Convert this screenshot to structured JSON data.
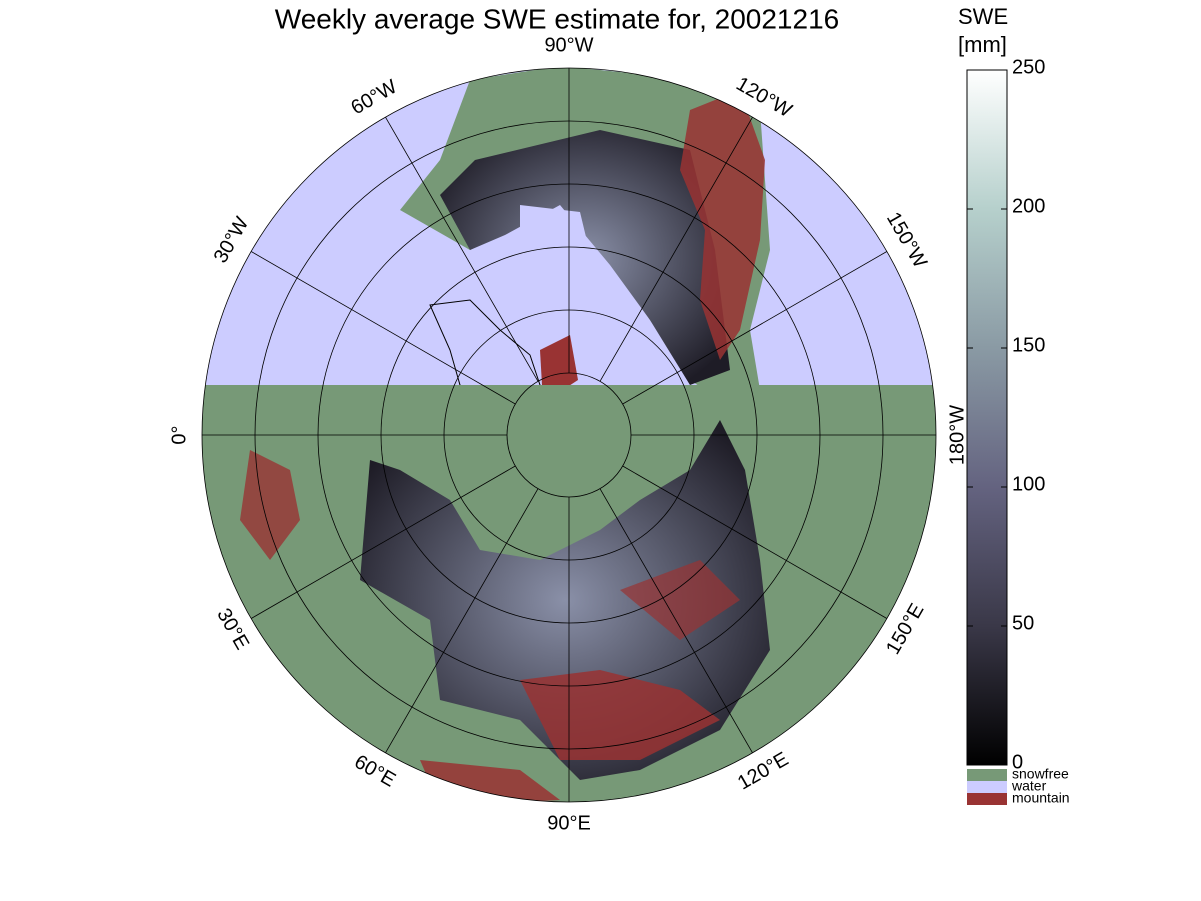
{
  "map": {
    "title": "Weekly average SWE estimate for, 20021216",
    "longitude_labels": [
      "90°W",
      "120°W",
      "150°W",
      "180°W",
      "150°E",
      "120°E",
      "90°E",
      "60°E",
      "30°E",
      "0°",
      "30°W",
      "60°W"
    ],
    "colorbar": {
      "label": [
        "SWE",
        "[mm]"
      ],
      "lim": [
        0,
        250
      ],
      "ticks": [
        0,
        50,
        100,
        150,
        200,
        250
      ]
    },
    "legend": [
      {
        "label": "snowfree",
        "color": "#779977"
      },
      {
        "label": "water",
        "color": "#ccccff"
      },
      {
        "label": "mountain",
        "color": "#993333"
      }
    ]
  }
}
